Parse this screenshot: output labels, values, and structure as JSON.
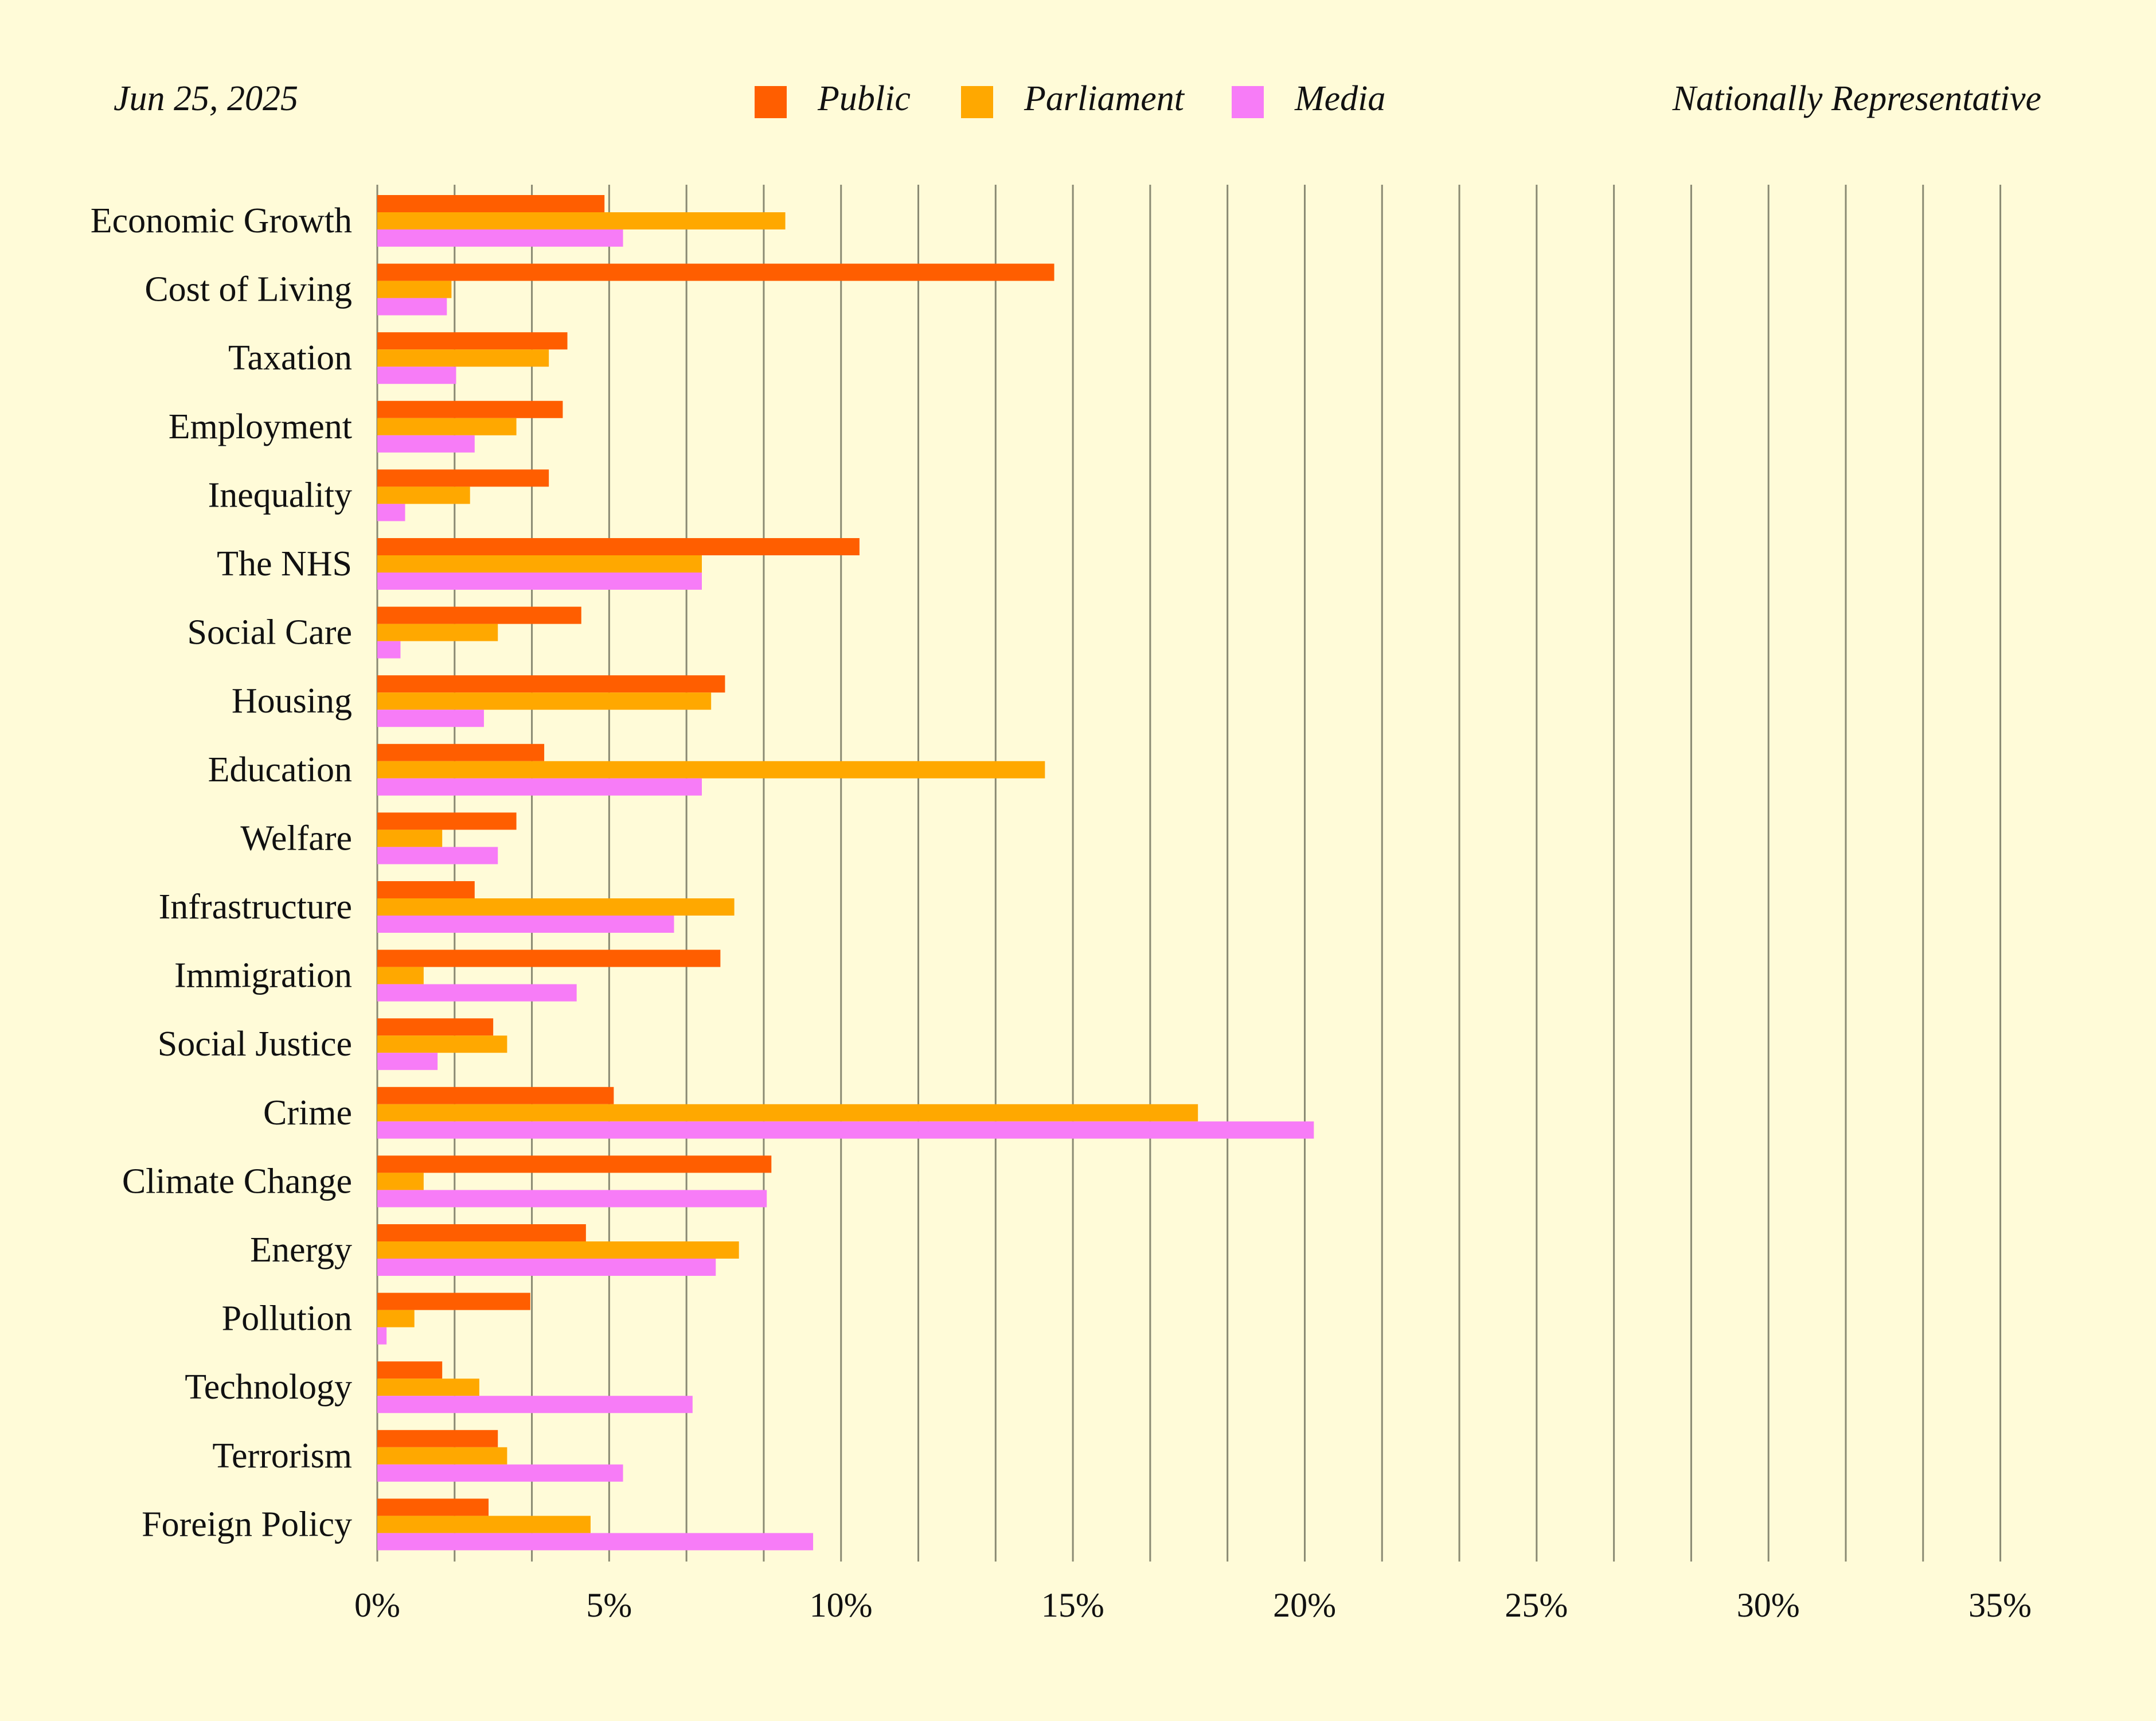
{
  "header": {
    "date": "Jun 25, 2025",
    "sample": "Nationally Representative"
  },
  "colors": {
    "background": "#fffbd8",
    "public": "#ff5e00",
    "parliament": "#ffa800",
    "media": "#f77cf7",
    "grid": "#8a8a73"
  },
  "chart_data": {
    "type": "bar",
    "orientation": "horizontal",
    "title": "",
    "xlabel": "",
    "ylabel": "",
    "xlim": [
      0,
      35
    ],
    "x_ticks": [
      0,
      5,
      10,
      15,
      20,
      25,
      30,
      35
    ],
    "x_tick_labels": [
      "0%",
      "5%",
      "10%",
      "15%",
      "20%",
      "25%",
      "30%",
      "35%"
    ],
    "minor_gridline_step": 1.667,
    "grid": true,
    "legend_position": "top-center",
    "categories": [
      "Economic Growth",
      "Cost of Living",
      "Taxation",
      "Employment",
      "Inequality",
      "The NHS",
      "Social Care",
      "Housing",
      "Education",
      "Welfare",
      "Infrastructure",
      "Immigration",
      "Social Justice",
      "Crime",
      "Climate Change",
      "Energy",
      "Pollution",
      "Technology",
      "Terrorism",
      "Foreign Policy"
    ],
    "series": [
      {
        "name": "Public",
        "color": "#ff5e00",
        "values": [
          4.9,
          14.6,
          4.1,
          4.0,
          3.7,
          10.4,
          4.4,
          7.5,
          3.6,
          3.0,
          2.1,
          7.4,
          2.5,
          5.1,
          8.5,
          4.5,
          3.3,
          1.4,
          2.6,
          2.4
        ]
      },
      {
        "name": "Parliament",
        "color": "#ffa800",
        "values": [
          8.8,
          1.6,
          3.7,
          3.0,
          2.0,
          7.0,
          2.6,
          7.2,
          14.4,
          1.4,
          7.7,
          1.0,
          2.8,
          17.7,
          1.0,
          7.8,
          0.8,
          2.2,
          2.8,
          4.6
        ]
      },
      {
        "name": "Media",
        "color": "#f77cf7",
        "values": [
          5.3,
          1.5,
          1.7,
          2.1,
          0.6,
          7.0,
          0.5,
          2.3,
          7.0,
          2.6,
          6.4,
          4.3,
          1.3,
          20.2,
          8.4,
          7.3,
          0.2,
          6.8,
          5.3,
          9.4
        ]
      }
    ]
  }
}
